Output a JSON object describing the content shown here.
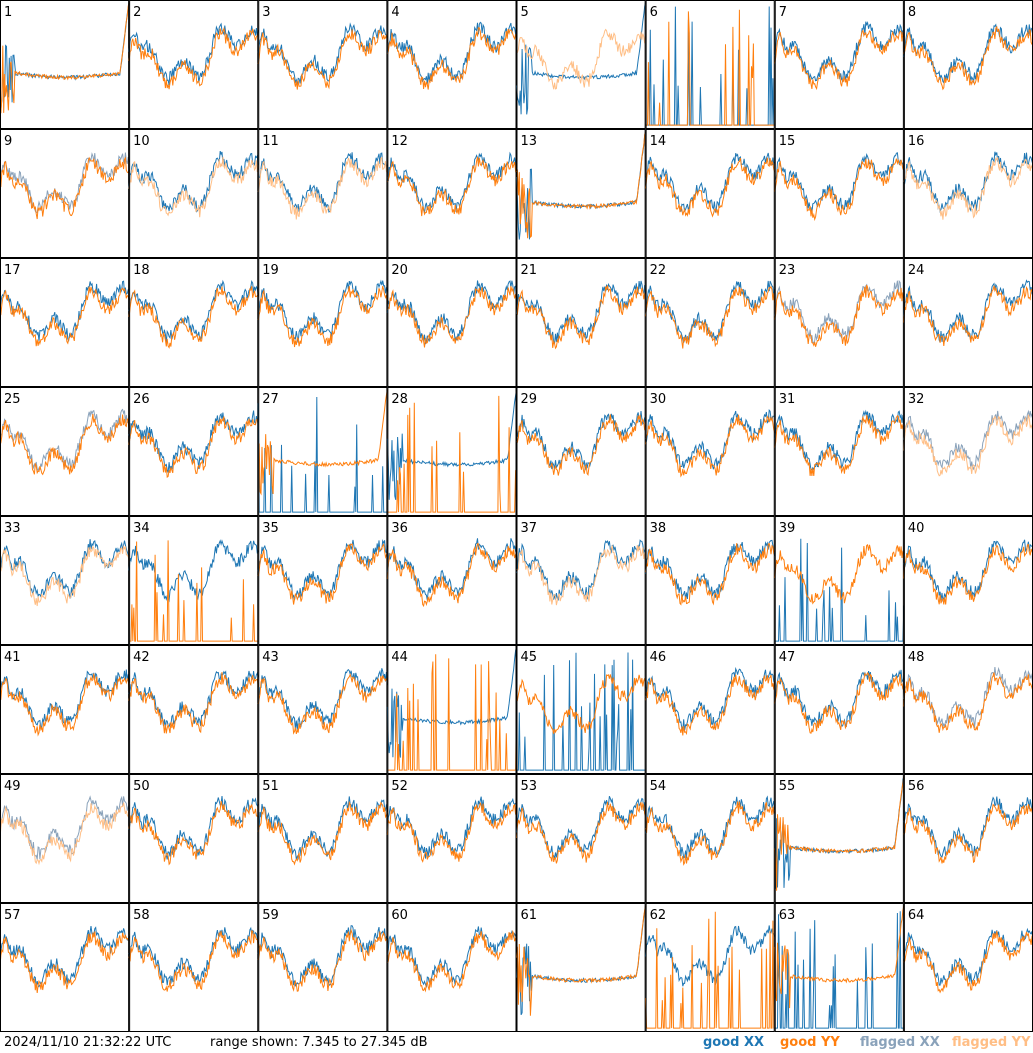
{
  "footer": {
    "timestamp": "2024/11/10 21:32:22 UTC",
    "range": "range shown: 7.345 to 27.345 dB"
  },
  "chart_data": {
    "type": "line",
    "layout": "small-multiples grid, 8 columns x 8 rows",
    "ylim": [
      7.345,
      27.345
    ],
    "yunit": "dB",
    "legend": {
      "placement": "bottom-right",
      "entries": [
        {
          "label": "good XX",
          "color": "#1f77b4"
        },
        {
          "label": "good YY",
          "color": "#ff7f0e"
        },
        {
          "label": "flagged XX",
          "color": "#8aa2ba"
        },
        {
          "label": "flagged YY",
          "color": "#ffbe85"
        }
      ]
    },
    "panel_labels": [
      "1",
      "2",
      "3",
      "4",
      "5",
      "6",
      "7",
      "8",
      "9",
      "10",
      "11",
      "12",
      "13",
      "14",
      "15",
      "16",
      "17",
      "18",
      "19",
      "20",
      "21",
      "22",
      "23",
      "24",
      "25",
      "26",
      "27",
      "28",
      "29",
      "30",
      "31",
      "32",
      "33",
      "34",
      "35",
      "36",
      "37",
      "38",
      "39",
      "40",
      "41",
      "42",
      "43",
      "44",
      "45",
      "46",
      "47",
      "48",
      "49",
      "50",
      "51",
      "52",
      "53",
      "54",
      "55",
      "56",
      "57",
      "58",
      "59",
      "60",
      "61",
      "62",
      "63",
      "64"
    ],
    "panel_status": {
      "xx_flagged": [
        9,
        23,
        25,
        32,
        48,
        49
      ],
      "yy_flagged": [
        5,
        10,
        11,
        16,
        32,
        33,
        37,
        49
      ],
      "xx_anomalous": [
        1,
        5,
        6,
        13,
        27,
        28,
        39,
        44,
        45,
        55,
        61,
        63
      ],
      "yy_anomalous": [
        1,
        6,
        13,
        27,
        28,
        34,
        44,
        55,
        61,
        62,
        63
      ]
    }
  }
}
